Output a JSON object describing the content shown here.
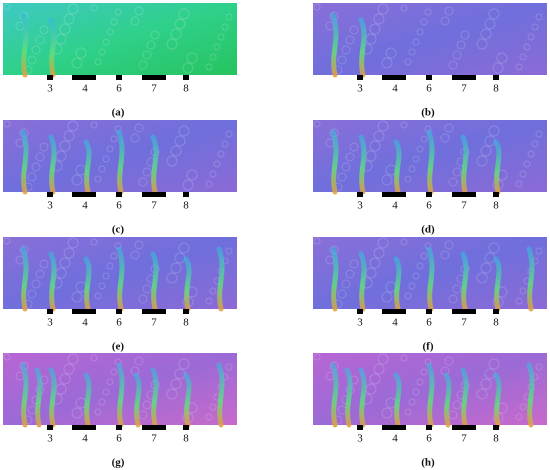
{
  "panels": [
    {
      "label": "(a)",
      "markers": [
        "3",
        "4",
        "6",
        "7",
        "8"
      ]
    },
    {
      "label": "(b)",
      "markers": [
        "3",
        "4",
        "6",
        "7",
        "8"
      ]
    },
    {
      "label": "(c)",
      "markers": [
        "3",
        "4",
        "6",
        "7",
        "8"
      ]
    },
    {
      "label": "(d)",
      "markers": [
        "3",
        "4",
        "6",
        "7",
        "8"
      ]
    },
    {
      "label": "(e)",
      "markers": [
        "3",
        "4",
        "6",
        "7",
        "8"
      ]
    },
    {
      "label": "(f)",
      "markers": [
        "3",
        "4",
        "6",
        "7",
        "8"
      ]
    },
    {
      "label": "(g)",
      "markers": [
        "3",
        "4",
        "6",
        "7",
        "8"
      ]
    },
    {
      "label": "(h)",
      "markers": [
        "3",
        "4",
        "6",
        "7",
        "8"
      ]
    }
  ]
}
